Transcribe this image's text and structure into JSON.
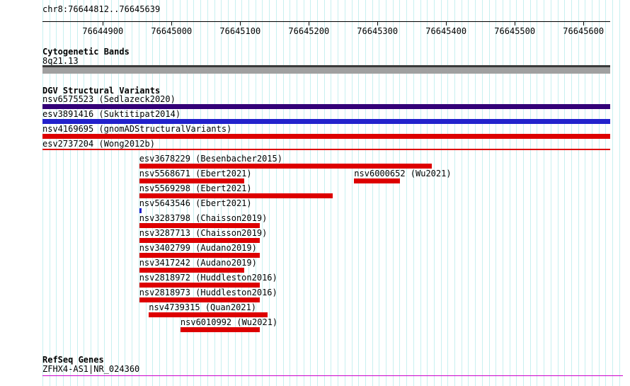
{
  "colors": {
    "grid": "#c8f0f0",
    "red": "#dd0000",
    "blue": "#2222cc",
    "purple": "#330077",
    "magenta": "#cc00cc",
    "band_dark": "#3a3a3a",
    "band_gray": "#a0a0a0"
  },
  "header": {
    "locus": "chr8:76644812..76645639"
  },
  "ruler": {
    "start": 76644812,
    "end": 76645639,
    "tick_labels": [
      "76644900",
      "76645000",
      "76645100",
      "76645200",
      "76645300",
      "76645400",
      "76645500",
      "76645600"
    ]
  },
  "cytobands": {
    "title": "Cytogenetic Bands",
    "band_label": "8q21.13"
  },
  "dgv": {
    "title": "DGV Structural Variants",
    "full_span_variants": [
      {
        "label": "nsv6575523 (Sedlazeck2020)",
        "color_key": "purple",
        "thin": false
      },
      {
        "label": "esv3891416 (Suktitipat2014)",
        "color_key": "blue",
        "thin": false
      },
      {
        "label": "nsv4169695 (gnomADStructuralVariants)",
        "color_key": "red",
        "thin": false
      },
      {
        "label": "esv2737204 (Wong2012b)",
        "color_key": "red",
        "thin": true
      }
    ],
    "variant_rows": [
      [
        {
          "label": "esv3678229 (Besenbacher2015)",
          "start": 76644953,
          "end": 76645379,
          "color_key": "red"
        }
      ],
      [
        {
          "label": "nsv5568671 (Ebert2021)",
          "start": 76644953,
          "end": 76645106,
          "color_key": "red"
        },
        {
          "label": "nsv6000652 (Wu2021)",
          "start": 76645266,
          "end": 76645333,
          "color_key": "red"
        }
      ],
      [
        {
          "label": "nsv5569298 (Ebert2021)",
          "start": 76644953,
          "end": 76645235,
          "color_key": "red"
        }
      ],
      [
        {
          "label": "nsv5643546 (Ebert2021)",
          "start": 76644953,
          "end": 76644956,
          "color_key": "blue"
        }
      ],
      [
        {
          "label": "nsv3283798 (Chaisson2019)",
          "start": 76644953,
          "end": 76645129,
          "color_key": "red"
        }
      ],
      [
        {
          "label": "nsv3287713 (Chaisson2019)",
          "start": 76644953,
          "end": 76645129,
          "color_key": "red"
        }
      ],
      [
        {
          "label": "nsv3402799 (Audano2019)",
          "start": 76644953,
          "end": 76645129,
          "color_key": "red"
        }
      ],
      [
        {
          "label": "nsv3417242 (Audano2019)",
          "start": 76644953,
          "end": 76645106,
          "color_key": "red"
        }
      ],
      [
        {
          "label": "nsv2818972 (Huddleston2016)",
          "start": 76644953,
          "end": 76645129,
          "color_key": "red"
        }
      ],
      [
        {
          "label": "nsv2818973 (Huddleston2016)",
          "start": 76644953,
          "end": 76645129,
          "color_key": "red"
        }
      ],
      [
        {
          "label": "nsv4739315 (Quan2021)",
          "start": 76644967,
          "end": 76645140,
          "color_key": "red"
        }
      ],
      [
        {
          "label": "nsv6010992 (Wu2021)",
          "start": 76645013,
          "end": 76645129,
          "color_key": "red"
        }
      ]
    ]
  },
  "refseq": {
    "title": "RefSeq Genes",
    "gene_label": "ZFHX4-AS1|NR_024360"
  }
}
